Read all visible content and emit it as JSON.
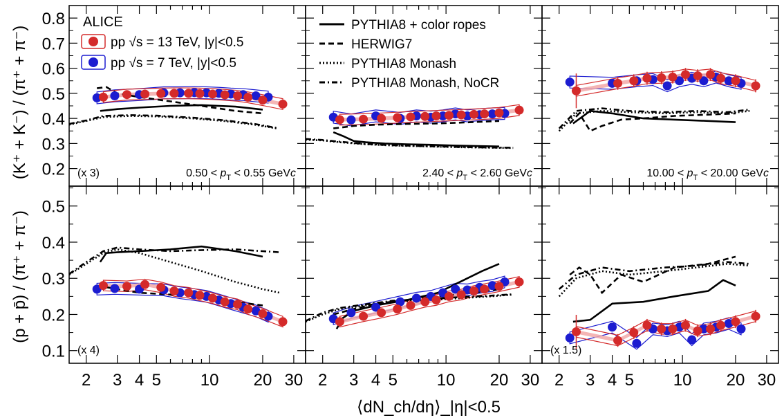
{
  "figure": {
    "experiment_label": "ALICE",
    "xlabel": "⟨dN_ch/dη⟩_|η|<0.5",
    "ylabel_top": "(K⁺ + K⁻) / (π⁺ + π⁻)",
    "ylabel_bottom": "(p + p̄) / (π⁺ + π⁻)",
    "legend_data": [
      {
        "label": "pp √s = 13 TeV, |y|<0.5",
        "color": "#d42a2a"
      },
      {
        "label": "pp √s = 7 TeV, |y|<0.5",
        "color": "#2a2ad4"
      }
    ],
    "legend_models": [
      {
        "label": "PYTHIA8 + color ropes",
        "dash": "solid"
      },
      {
        "label": "HERWIG7",
        "dash": "dashed"
      },
      {
        "label": "PYTHIA8 Monash",
        "dash": "dotted"
      },
      {
        "label": "PYTHIA8 Monash, NoCR",
        "dash": "dashdot"
      }
    ],
    "colors": {
      "pp13": "#d42a2a",
      "pp13_band": "#f2a8a8",
      "pp7": "#1c1cd0"
    }
  },
  "chart_data": [
    {
      "type": "scatter",
      "panel": "top-left",
      "scale_label": "(x 3)",
      "pt_label": "0.50 < p_T < 0.55 GeV/c",
      "xscale": "log",
      "xlim": [
        1.6,
        35
      ],
      "ylim": [
        0.13,
        0.85
      ],
      "yticks": [
        0.2,
        0.3,
        0.4,
        0.5,
        0.6,
        0.7,
        0.8
      ],
      "series": [
        {
          "name": "pp √s = 13 TeV, |y|<0.5",
          "x": [
            2.5,
            3.4,
            4.3,
            5.3,
            6.3,
            7.6,
            8.8,
            10.4,
            12.2,
            14.4,
            16.5,
            20.0,
            26.0
          ],
          "y": [
            0.485,
            0.495,
            0.497,
            0.499,
            0.5,
            0.5,
            0.499,
            0.497,
            0.494,
            0.49,
            0.484,
            0.473,
            0.457
          ]
        },
        {
          "name": "pp √s = 7 TeV, |y|<0.5",
          "x": [
            2.3,
            2.9,
            4.0,
            5.5,
            6.8,
            8.2,
            9.6,
            11.3,
            13.2,
            15.5,
            18.3,
            21.5
          ],
          "y": [
            0.482,
            0.49,
            0.495,
            0.502,
            0.502,
            0.503,
            0.502,
            0.5,
            0.497,
            0.495,
            0.49,
            0.485
          ]
        },
        {
          "name": "PYTHIA8 + color ropes",
          "x": [
            2.4,
            3.0,
            4.0,
            6.0,
            9.0,
            14.0,
            20.0
          ],
          "y": [
            0.43,
            0.437,
            0.443,
            0.45,
            0.453,
            0.447,
            0.435
          ]
        },
        {
          "name": "HERWIG7",
          "x": [
            2.3,
            2.6,
            3.0,
            4.0,
            6.0,
            9.0,
            14.0,
            20.0
          ],
          "y": [
            0.52,
            0.525,
            0.5,
            0.485,
            0.468,
            0.45,
            0.43,
            0.42
          ]
        },
        {
          "name": "PYTHIA8 Monash",
          "x": [
            1.6,
            2.0,
            2.5,
            3.5,
            5.0,
            8.0,
            12.0,
            18.0,
            24.0
          ],
          "y": [
            0.375,
            0.39,
            0.405,
            0.41,
            0.408,
            0.4,
            0.39,
            0.375,
            0.36
          ]
        },
        {
          "name": "PYTHIA8 Monash, NoCR",
          "x": [
            1.6,
            2.0,
            2.5,
            3.5,
            5.0,
            8.0,
            12.0,
            18.0,
            24.0
          ],
          "y": [
            0.378,
            0.392,
            0.41,
            0.413,
            0.411,
            0.403,
            0.393,
            0.378,
            0.362
          ]
        }
      ]
    },
    {
      "type": "scatter",
      "panel": "top-middle",
      "scale_label": "",
      "pt_label": "2.40 < p_T < 2.60 GeV/c",
      "xscale": "log",
      "xlim": [
        1.6,
        35
      ],
      "ylim": [
        0.13,
        0.85
      ],
      "yticks": [
        0.2,
        0.3,
        0.4,
        0.5,
        0.6,
        0.7,
        0.8
      ],
      "series": [
        {
          "name": "pp √s = 13 TeV, |y|<0.5",
          "x": [
            2.5,
            3.4,
            4.3,
            5.3,
            6.3,
            7.6,
            8.8,
            10.4,
            12.2,
            14.4,
            16.5,
            20.0,
            26.0
          ],
          "y": [
            0.395,
            0.397,
            0.4,
            0.403,
            0.406,
            0.408,
            0.41,
            0.412,
            0.414,
            0.416,
            0.418,
            0.422,
            0.433
          ]
        },
        {
          "name": "pp √s = 7 TeV, |y|<0.5",
          "x": [
            2.3,
            2.9,
            4.0,
            5.5,
            6.8,
            8.2,
            9.6,
            11.3,
            13.2,
            15.5,
            18.3,
            21.5
          ],
          "y": [
            0.405,
            0.394,
            0.41,
            0.4,
            0.41,
            0.405,
            0.41,
            0.418,
            0.41,
            0.415,
            0.418,
            0.42
          ]
        },
        {
          "name": "PYTHIA8 + color ropes",
          "x": [
            2.3,
            2.6,
            3.0,
            3.5,
            4.5,
            6.0,
            8.0,
            11.0,
            15.0,
            20.0
          ],
          "y": [
            0.345,
            0.33,
            0.31,
            0.305,
            0.3,
            0.297,
            0.295,
            0.292,
            0.29,
            0.288
          ]
        },
        {
          "name": "HERWIG7",
          "x": [
            2.3,
            3.0,
            4.0,
            6.0,
            9.0,
            14.0,
            20.0
          ],
          "y": [
            0.36,
            0.37,
            0.375,
            0.378,
            0.38,
            0.385,
            0.39
          ]
        },
        {
          "name": "PYTHIA8 Monash",
          "x": [
            1.6,
            2.0,
            2.5,
            3.5,
            5.0,
            8.0,
            12.0,
            18.0,
            24.0
          ],
          "y": [
            0.315,
            0.312,
            0.305,
            0.297,
            0.292,
            0.288,
            0.285,
            0.283,
            0.282
          ]
        },
        {
          "name": "PYTHIA8 Monash, NoCR",
          "x": [
            1.6,
            2.0,
            2.5,
            3.5,
            5.0,
            8.0,
            12.0,
            18.0,
            24.0
          ],
          "y": [
            0.318,
            0.314,
            0.307,
            0.298,
            0.293,
            0.289,
            0.286,
            0.284,
            0.283
          ]
        }
      ]
    },
    {
      "type": "scatter",
      "panel": "top-right",
      "scale_label": "",
      "pt_label": "10.00 < p_T < 20.00 GeV/c",
      "xscale": "log",
      "xlim": [
        1.6,
        35
      ],
      "ylim": [
        0.13,
        0.85
      ],
      "yticks": [
        0.2,
        0.3,
        0.4,
        0.5,
        0.6,
        0.7,
        0.8
      ],
      "series": [
        {
          "name": "pp √s = 13 TeV, |y|<0.5",
          "x": [
            2.5,
            4.3,
            5.3,
            6.3,
            7.6,
            8.8,
            10.4,
            12.2,
            14.4,
            16.5,
            20.0,
            26.0
          ],
          "y": [
            0.51,
            0.54,
            0.55,
            0.56,
            0.562,
            0.565,
            0.575,
            0.57,
            0.575,
            0.56,
            0.55,
            0.53
          ]
        },
        {
          "name": "pp √s = 7 TeV, |y|<0.5",
          "x": [
            2.3,
            4.0,
            5.5,
            6.8,
            8.2,
            9.6,
            11.3,
            13.2,
            15.5,
            18.3,
            21.5
          ],
          "y": [
            0.545,
            0.54,
            0.55,
            0.555,
            0.53,
            0.55,
            0.56,
            0.55,
            0.565,
            0.55,
            0.54
          ]
        },
        {
          "name": "PYTHIA8 + color ropes",
          "x": [
            2.4,
            3.0,
            4.0,
            6.0,
            9.0,
            14.0,
            20.0
          ],
          "y": [
            0.38,
            0.43,
            0.42,
            0.4,
            0.395,
            0.39,
            0.385
          ]
        },
        {
          "name": "HERWIG7",
          "x": [
            2.3,
            2.6,
            3.0,
            3.5,
            4.5,
            6.0,
            9.0,
            14.0,
            20.0
          ],
          "y": [
            0.38,
            0.42,
            0.35,
            0.37,
            0.395,
            0.4,
            0.41,
            0.415,
            0.42
          ]
        },
        {
          "name": "PYTHIA8 Monash",
          "x": [
            2.0,
            2.5,
            3.5,
            5.0,
            8.0,
            12.0,
            18.0,
            24.0
          ],
          "y": [
            0.35,
            0.42,
            0.43,
            0.425,
            0.42,
            0.425,
            0.42,
            0.43
          ]
        },
        {
          "name": "PYTHIA8 Monash, NoCR",
          "x": [
            2.0,
            2.5,
            3.5,
            5.0,
            8.0,
            12.0,
            18.0,
            24.0
          ],
          "y": [
            0.36,
            0.43,
            0.44,
            0.43,
            0.425,
            0.43,
            0.425,
            0.435
          ]
        }
      ]
    },
    {
      "type": "scatter",
      "panel": "bottom-left",
      "scale_label": "(x 4)",
      "pt_label": "",
      "xscale": "log",
      "xlim": [
        1.6,
        35
      ],
      "ylim": [
        0.065,
        0.555
      ],
      "yticks": [
        0.1,
        0.2,
        0.3,
        0.4,
        0.5
      ],
      "series": [
        {
          "name": "pp √s = 13 TeV, |y|<0.5",
          "x": [
            2.5,
            3.4,
            4.3,
            5.3,
            6.3,
            7.6,
            8.8,
            10.4,
            12.2,
            14.4,
            16.5,
            20.0,
            26.0
          ],
          "y": [
            0.28,
            0.278,
            0.283,
            0.275,
            0.265,
            0.26,
            0.253,
            0.245,
            0.235,
            0.228,
            0.215,
            0.202,
            0.18
          ]
        },
        {
          "name": "pp √s = 7 TeV, |y|<0.5",
          "x": [
            2.3,
            2.9,
            4.0,
            5.5,
            6.8,
            8.2,
            9.6,
            11.3,
            13.2,
            15.5,
            18.3,
            21.5
          ],
          "y": [
            0.27,
            0.272,
            0.27,
            0.268,
            0.26,
            0.255,
            0.25,
            0.24,
            0.23,
            0.22,
            0.21,
            0.195
          ]
        },
        {
          "name": "PYTHIA8 + color ropes",
          "x": [
            2.4,
            2.6,
            3.0,
            4.0,
            6.0,
            9.0,
            14.0,
            20.0
          ],
          "y": [
            0.345,
            0.37,
            0.372,
            0.375,
            0.38,
            0.388,
            0.375,
            0.36
          ]
        },
        {
          "name": "HERWIG7",
          "x": [
            2.3,
            3.0,
            4.0,
            6.0,
            9.0,
            14.0,
            20.0
          ],
          "y": [
            0.28,
            0.27,
            0.26,
            0.255,
            0.25,
            0.235,
            0.225
          ]
        },
        {
          "name": "PYTHIA8 Monash",
          "x": [
            1.6,
            2.0,
            2.5,
            3.0,
            4.0,
            6.0,
            9.0,
            14.0,
            20.0,
            25.0
          ],
          "y": [
            0.31,
            0.34,
            0.37,
            0.38,
            0.37,
            0.345,
            0.32,
            0.29,
            0.27,
            0.26
          ]
        },
        {
          "name": "PYTHIA8 Monash, NoCR",
          "x": [
            1.6,
            2.0,
            2.5,
            3.0,
            4.0,
            6.0,
            9.0,
            14.0,
            20.0,
            25.0
          ],
          "y": [
            0.312,
            0.345,
            0.375,
            0.385,
            0.38,
            0.375,
            0.378,
            0.38,
            0.375,
            0.372
          ]
        }
      ]
    },
    {
      "type": "scatter",
      "panel": "bottom-middle",
      "scale_label": "",
      "pt_label": "",
      "xscale": "log",
      "xlim": [
        1.6,
        35
      ],
      "ylim": [
        0.065,
        0.555
      ],
      "yticks": [
        0.1,
        0.2,
        0.3,
        0.4,
        0.5
      ],
      "series": [
        {
          "name": "pp √s = 13 TeV, |y|<0.5",
          "x": [
            2.5,
            3.4,
            4.3,
            5.3,
            6.3,
            7.6,
            8.8,
            10.4,
            12.2,
            14.4,
            16.5,
            20.0,
            26.0
          ],
          "y": [
            0.18,
            0.195,
            0.205,
            0.215,
            0.225,
            0.235,
            0.24,
            0.25,
            0.255,
            0.265,
            0.27,
            0.278,
            0.29
          ]
        },
        {
          "name": "pp √s = 7 TeV, |y|<0.5",
          "x": [
            2.3,
            2.9,
            4.0,
            5.5,
            6.8,
            8.2,
            9.6,
            11.3,
            13.2,
            15.5,
            18.3,
            21.5
          ],
          "y": [
            0.188,
            0.205,
            0.22,
            0.235,
            0.245,
            0.25,
            0.26,
            0.27,
            0.268,
            0.275,
            0.28,
            0.29
          ]
        },
        {
          "name": "PYTHIA8 + color ropes",
          "x": [
            2.4,
            2.6,
            3.0,
            4.0,
            6.0,
            9.0,
            12.0,
            16.0,
            20.0
          ],
          "y": [
            0.16,
            0.19,
            0.21,
            0.225,
            0.24,
            0.26,
            0.29,
            0.32,
            0.34
          ]
        },
        {
          "name": "HERWIG7",
          "x": [
            2.3,
            3.0,
            4.0,
            6.0,
            9.0,
            14.0,
            20.0
          ],
          "y": [
            0.2,
            0.215,
            0.23,
            0.24,
            0.25,
            0.26,
            0.27
          ]
        },
        {
          "name": "PYTHIA8 Monash",
          "x": [
            1.6,
            2.0,
            2.5,
            3.5,
            5.0,
            8.0,
            12.0,
            18.0,
            24.0
          ],
          "y": [
            0.18,
            0.2,
            0.215,
            0.225,
            0.235,
            0.24,
            0.245,
            0.25,
            0.255
          ]
        },
        {
          "name": "PYTHIA8 Monash, NoCR",
          "x": [
            1.6,
            2.0,
            2.5,
            3.5,
            5.0,
            8.0,
            12.0,
            18.0,
            24.0
          ],
          "y": [
            0.182,
            0.205,
            0.218,
            0.228,
            0.238,
            0.243,
            0.248,
            0.252,
            0.256
          ]
        }
      ]
    },
    {
      "type": "scatter",
      "panel": "bottom-right",
      "scale_label": "(x 1.5)",
      "pt_label": "",
      "xscale": "log",
      "xlim": [
        1.6,
        35
      ],
      "ylim": [
        0.065,
        0.555
      ],
      "yticks": [
        0.1,
        0.2,
        0.3,
        0.4,
        0.5
      ],
      "series": [
        {
          "name": "pp √s = 13 TeV, |y|<0.5",
          "x": [
            2.5,
            4.3,
            5.3,
            6.3,
            7.6,
            8.8,
            10.4,
            12.2,
            14.4,
            16.5,
            20.0,
            26.0
          ],
          "y": [
            0.152,
            0.128,
            0.15,
            0.17,
            0.16,
            0.16,
            0.17,
            0.155,
            0.16,
            0.17,
            0.18,
            0.195
          ]
        },
        {
          "name": "pp √s = 7 TeV, |y|<0.5",
          "x": [
            2.3,
            4.0,
            5.5,
            6.8,
            8.2,
            9.6,
            11.3,
            13.2,
            15.5,
            18.3,
            21.5
          ],
          "y": [
            0.135,
            0.165,
            0.12,
            0.16,
            0.155,
            0.165,
            0.13,
            0.16,
            0.165,
            0.175,
            0.16
          ]
        },
        {
          "name": "PYTHIA8 + color ropes",
          "x": [
            2.4,
            3.0,
            4.0,
            6.0,
            9.0,
            14.0,
            17.0,
            20.0
          ],
          "y": [
            0.18,
            0.185,
            0.23,
            0.235,
            0.25,
            0.265,
            0.295,
            0.28
          ]
        },
        {
          "name": "HERWIG7",
          "x": [
            2.3,
            2.6,
            3.0,
            3.5,
            4.5,
            6.0,
            9.0,
            14.0,
            20.0
          ],
          "y": [
            0.31,
            0.33,
            0.31,
            0.26,
            0.31,
            0.29,
            0.33,
            0.34,
            0.36
          ]
        },
        {
          "name": "PYTHIA8 Monash",
          "x": [
            2.0,
            2.5,
            3.5,
            5.0,
            8.0,
            12.0,
            18.0,
            24.0
          ],
          "y": [
            0.25,
            0.3,
            0.32,
            0.31,
            0.32,
            0.33,
            0.34,
            0.335
          ]
        },
        {
          "name": "PYTHIA8 Monash, NoCR",
          "x": [
            2.0,
            2.5,
            3.5,
            5.0,
            8.0,
            12.0,
            18.0,
            24.0
          ],
          "y": [
            0.27,
            0.31,
            0.33,
            0.32,
            0.33,
            0.335,
            0.345,
            0.34
          ]
        }
      ]
    }
  ]
}
